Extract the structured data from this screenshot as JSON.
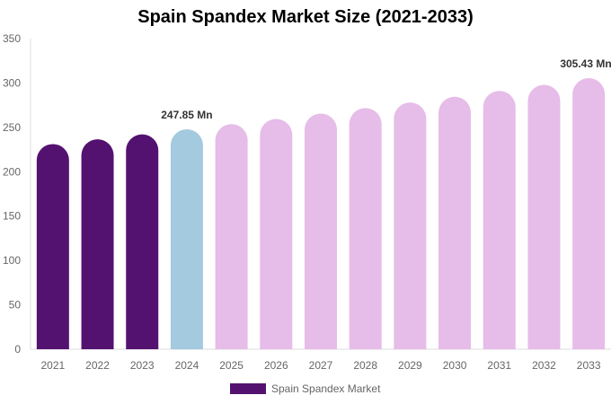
{
  "chart_data": {
    "type": "bar",
    "title": "Spain Spandex Market Size (2021-2033)",
    "categories": [
      "2021",
      "2022",
      "2023",
      "2024",
      "2025",
      "2026",
      "2027",
      "2028",
      "2029",
      "2030",
      "2031",
      "2032",
      "2033"
    ],
    "series": [
      {
        "name": "Spain Spandex Market",
        "values": [
          231.2,
          236.6,
          242.2,
          247.85,
          253.6,
          259.5,
          265.5,
          271.7,
          278.0,
          284.5,
          291.1,
          297.9,
          305.43
        ]
      }
    ],
    "bar_colors": {
      "historical": "#541270",
      "base_year": "#a3cadf",
      "forecast": "#e6bce8"
    },
    "bar_color_per_category": [
      "historical",
      "historical",
      "historical",
      "base_year",
      "forecast",
      "forecast",
      "forecast",
      "forecast",
      "forecast",
      "forecast",
      "forecast",
      "forecast",
      "forecast"
    ],
    "data_labels": [
      {
        "category": "2024",
        "text": "247.85 Mn"
      },
      {
        "category": "2033",
        "text": "305.43 Mn"
      }
    ],
    "ylim": [
      0,
      350
    ],
    "yticks": [
      0,
      50,
      100,
      150,
      200,
      250,
      300,
      350
    ],
    "xlabel": "",
    "ylabel": "",
    "grid": false,
    "legend_position": "bottom"
  }
}
